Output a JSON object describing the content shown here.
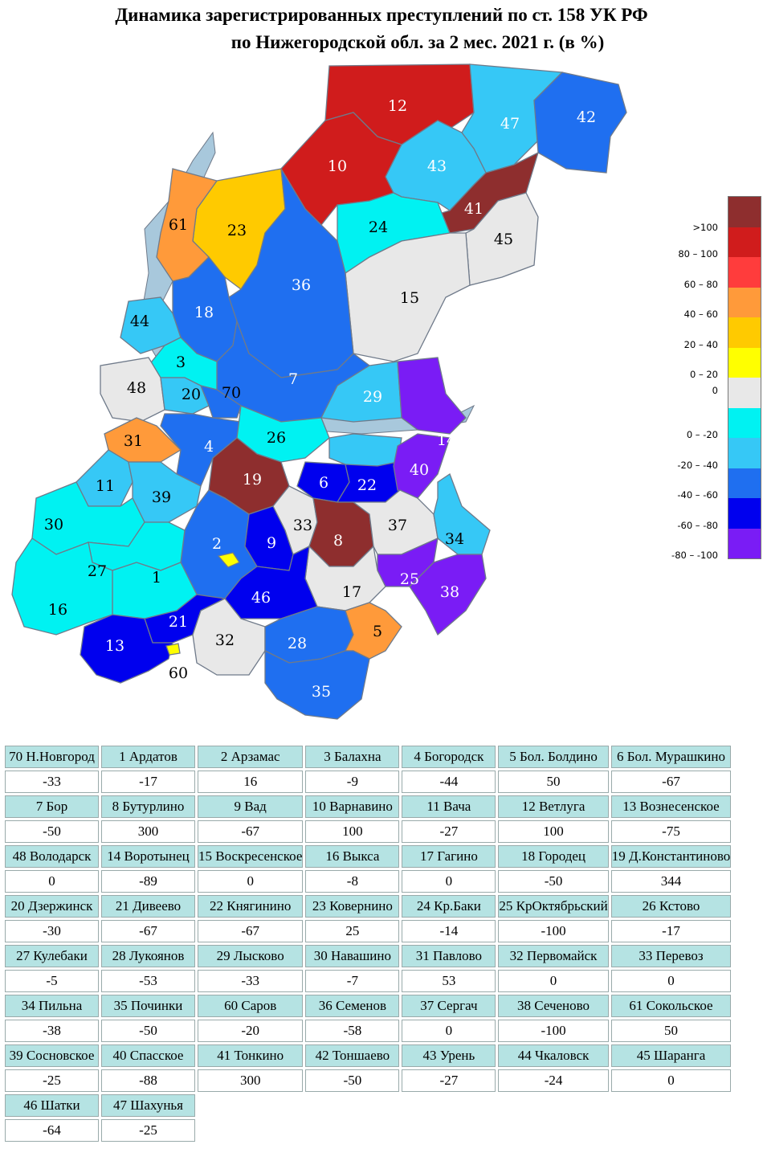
{
  "title": {
    "line1": "Динамика зарегистрированных преступлений по ст. 158 УК РФ",
    "line2": "по Нижегородской обл. за 2 мес. 2021 г. (в %)"
  },
  "legend": [
    {
      "label": ">100",
      "color": "#8e2e2e"
    },
    {
      "label": "80 – 100",
      "color": "#d01c1c"
    },
    {
      "label": "60 – 80",
      "color": "#ff3c3c"
    },
    {
      "label": "40 – 60",
      "color": "#ff9a3a"
    },
    {
      "label": "20 – 40",
      "color": "#ffca00"
    },
    {
      "label": "0 – 20",
      "color": "#ffff00"
    },
    {
      "label": "0",
      "color": "#e8e8e8"
    },
    {
      "label": "0 – -20",
      "color": "#00f2f2"
    },
    {
      "label": "-20 – -40",
      "color": "#36c8f6"
    },
    {
      "label": "-40 – -60",
      "color": "#1f6ff0"
    },
    {
      "label": "-60 – -80",
      "color": "#0000ee"
    },
    {
      "label": "-80 – -100",
      "color": "#7a1cf5"
    }
  ],
  "map_labels": [
    "70",
    "1",
    "2",
    "3",
    "4",
    "5",
    "6",
    "7",
    "8",
    "9",
    "10",
    "11",
    "12",
    "13",
    "48",
    "14",
    "15",
    "16",
    "17",
    "18",
    "19",
    "20",
    "21",
    "22",
    "23",
    "24",
    "25",
    "26",
    "27",
    "28",
    "29",
    "30",
    "31",
    "32",
    "33",
    "34",
    "35",
    "60",
    "36",
    "37",
    "38",
    "61",
    "39",
    "40",
    "41",
    "42",
    "43",
    "44",
    "45",
    "46",
    "47"
  ],
  "table": [
    {
      "name": "70 Н.Новгород",
      "value": "-33"
    },
    {
      "name": "1 Ардатов",
      "value": "-17"
    },
    {
      "name": "2 Арзамас",
      "value": "16"
    },
    {
      "name": "3 Балахна",
      "value": "-9"
    },
    {
      "name": "4 Богородск",
      "value": "-44"
    },
    {
      "name": "5 Бол. Болдино",
      "value": "50"
    },
    {
      "name": "6 Бол. Мурашкино",
      "value": "-67"
    },
    {
      "name": "7 Бор",
      "value": "-50"
    },
    {
      "name": "8 Бутурлино",
      "value": "300"
    },
    {
      "name": "9 Вад",
      "value": "-67"
    },
    {
      "name": "10 Варнавино",
      "value": "100"
    },
    {
      "name": "11 Вача",
      "value": "-27"
    },
    {
      "name": "12 Ветлуга",
      "value": "100"
    },
    {
      "name": "13 Вознесенское",
      "value": "-75"
    },
    {
      "name": "48 Володарск",
      "value": "0"
    },
    {
      "name": "14 Воротынец",
      "value": "-89"
    },
    {
      "name": "15 Воскресенское",
      "value": "0"
    },
    {
      "name": "16 Выкса",
      "value": "-8"
    },
    {
      "name": "17 Гагино",
      "value": "0"
    },
    {
      "name": "18 Городец",
      "value": "-50"
    },
    {
      "name": "19 Д.Константиново",
      "value": "344"
    },
    {
      "name": "20 Дзержинск",
      "value": "-30"
    },
    {
      "name": "21 Дивеево",
      "value": "-67"
    },
    {
      "name": "22 Княгинино",
      "value": "-67"
    },
    {
      "name": "23 Ковернино",
      "value": "25"
    },
    {
      "name": "24 Кр.Баки",
      "value": "-14"
    },
    {
      "name": "25 КрОктябрьский",
      "value": "-100"
    },
    {
      "name": "26 Кстово",
      "value": "-17"
    },
    {
      "name": "27 Кулебаки",
      "value": "-5"
    },
    {
      "name": "28 Лукоянов",
      "value": "-53"
    },
    {
      "name": "29 Лысково",
      "value": "-33"
    },
    {
      "name": "30 Навашино",
      "value": "-7"
    },
    {
      "name": "31 Павлово",
      "value": "53"
    },
    {
      "name": "32 Первомайск",
      "value": "0"
    },
    {
      "name": "33 Перевоз",
      "value": "0"
    },
    {
      "name": "34 Пильна",
      "value": "-38"
    },
    {
      "name": "35 Починки",
      "value": "-50"
    },
    {
      "name": "60 Саров",
      "value": "-20"
    },
    {
      "name": "36 Семенов",
      "value": "-58"
    },
    {
      "name": "37 Сергач",
      "value": "0"
    },
    {
      "name": "38 Сеченово",
      "value": "-100"
    },
    {
      "name": "61 Сокольское",
      "value": "50"
    },
    {
      "name": "39 Сосновское",
      "value": "-25"
    },
    {
      "name": "40 Спасское",
      "value": "-88"
    },
    {
      "name": "41 Тонкино",
      "value": "300"
    },
    {
      "name": "42 Тоншаево",
      "value": "-50"
    },
    {
      "name": "43 Урень",
      "value": "-27"
    },
    {
      "name": "44 Чкаловск",
      "value": "-24"
    },
    {
      "name": "45 Шаранга",
      "value": "0"
    },
    {
      "name": "46 Шатки",
      "value": "-64"
    },
    {
      "name": "47 Шахунья",
      "value": "-25"
    }
  ]
}
